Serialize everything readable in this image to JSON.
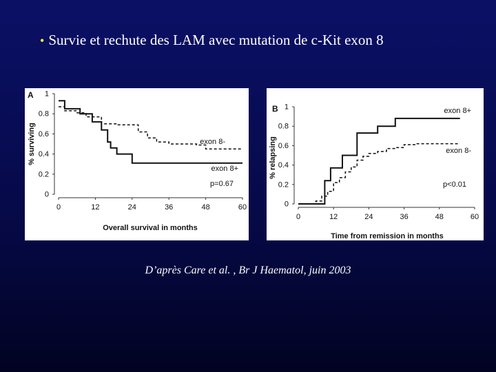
{
  "slide": {
    "title": "Survie et rechute des LAM avec mutation de c-Kit exon 8",
    "bullet_color": "#ffff33",
    "citation": "D’après Care et al. , Br J Haematol, juin 2003"
  },
  "chart_data": [
    {
      "type": "line",
      "step": true,
      "panel_label": "A",
      "xlabel": "Overall survival in months",
      "ylabel": "% surviving",
      "xlim": [
        0,
        60
      ],
      "ylim": [
        0,
        1
      ],
      "xticks": [
        "0",
        "12",
        "24",
        "36",
        "48",
        "60"
      ],
      "yticks": [
        "0",
        "0.2",
        "0.4",
        "0.6",
        "0.8",
        "1"
      ],
      "annotation": "p=0.67",
      "series": [
        {
          "name": "exon 8-",
          "style": "dashed",
          "x": [
            0,
            2,
            6,
            9,
            14,
            19,
            26,
            29,
            32,
            36,
            45,
            48,
            60
          ],
          "y": [
            0.87,
            0.83,
            0.81,
            0.77,
            0.7,
            0.69,
            0.62,
            0.56,
            0.52,
            0.5,
            0.49,
            0.45,
            0.45
          ]
        },
        {
          "name": "exon 8+",
          "style": "solid",
          "x": [
            0,
            2,
            7,
            11,
            14,
            16,
            17,
            19,
            24,
            36,
            48,
            60
          ],
          "y": [
            0.93,
            0.85,
            0.8,
            0.72,
            0.64,
            0.52,
            0.46,
            0.4,
            0.31,
            0.31,
            0.31,
            0.31
          ]
        }
      ]
    },
    {
      "type": "line",
      "step": true,
      "panel_label": "B",
      "xlabel": "Time from remission in months",
      "ylabel": "% relapsing",
      "xlim": [
        0,
        60
      ],
      "ylim": [
        0,
        1
      ],
      "xticks": [
        "0",
        "12",
        "24",
        "36",
        "48",
        "60"
      ],
      "yticks": [
        "0",
        "0.2",
        "0.4",
        "0.6",
        "0.8",
        "1"
      ],
      "annotation": "p<0.01",
      "series": [
        {
          "name": "exon 8+",
          "style": "solid",
          "x": [
            0,
            7,
            9,
            11,
            15,
            20,
            27,
            33,
            55
          ],
          "y": [
            0,
            0,
            0.24,
            0.37,
            0.5,
            0.73,
            0.8,
            0.88,
            0.88
          ]
        },
        {
          "name": "exon 8-",
          "style": "dashed",
          "x": [
            0,
            6,
            8,
            10,
            12,
            14,
            16,
            18,
            20,
            22,
            24,
            27,
            30,
            33,
            36,
            40,
            55
          ],
          "y": [
            0,
            0.03,
            0.08,
            0.13,
            0.22,
            0.27,
            0.33,
            0.38,
            0.45,
            0.49,
            0.52,
            0.54,
            0.57,
            0.58,
            0.61,
            0.62,
            0.62
          ]
        }
      ]
    }
  ]
}
